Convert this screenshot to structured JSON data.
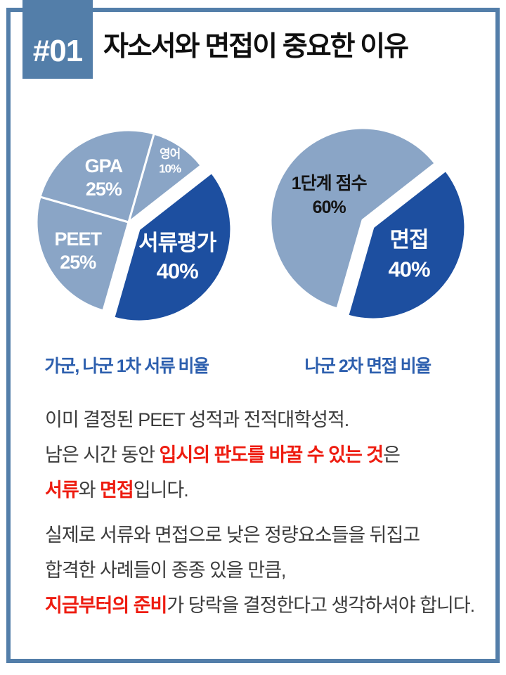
{
  "page": {
    "badge": "#01",
    "title": "자소서와 면접이 중요한 이유"
  },
  "colors": {
    "frame_blue": "#537ea9",
    "dark_slice_blue": "#1d4fa0",
    "light_slice_blue": "#8aa5c6",
    "caption_blue": "#2d5fae",
    "highlight_red": "#ee1c10",
    "body_text": "#3c3c3c"
  },
  "chart_data": [
    {
      "type": "pie",
      "title": "가군, 나군 1차 서류 비율",
      "unit": "%",
      "slices": [
        {
          "label": "영어",
          "value": 10,
          "value_label": "10%",
          "color": "#8aa5c6",
          "text_color": "#ffffff",
          "exploded": false
        },
        {
          "label": "서류평가",
          "value": 40,
          "value_label": "40%",
          "color": "#1d4fa0",
          "text_color": "#ffffff",
          "exploded": true
        },
        {
          "label": "PEET",
          "value": 25,
          "value_label": "25%",
          "color": "#8aa5c6",
          "text_color": "#ffffff",
          "exploded": false
        },
        {
          "label": "GPA",
          "value": 25,
          "value_label": "25%",
          "color": "#8aa5c6",
          "text_color": "#ffffff",
          "exploded": false
        }
      ]
    },
    {
      "type": "pie",
      "title": "나군 2차 면접 비율",
      "unit": "%",
      "slices": [
        {
          "label": "면접",
          "value": 40,
          "value_label": "40%",
          "color": "#1d4fa0",
          "text_color": "#ffffff",
          "exploded": true
        },
        {
          "label": "1단계 점수",
          "value": 60,
          "value_label": "60%",
          "color": "#8aa5c6",
          "text_color": "#141414",
          "exploded": false
        }
      ]
    }
  ],
  "paragraphs": [
    {
      "lines": [
        [
          {
            "t": "이미 결정된 PEET 성적과 전적대학성적."
          }
        ],
        [
          {
            "t": "남은 시간 동안 "
          },
          {
            "t": "입시의 판도를 바꿀 수 있는 것",
            "em": true
          },
          {
            "t": "은"
          }
        ],
        [
          {
            "t": "서류",
            "em": true
          },
          {
            "t": "와 "
          },
          {
            "t": "면접",
            "em": true
          },
          {
            "t": "입니다."
          }
        ]
      ]
    },
    {
      "lines": [
        [
          {
            "t": "실제로 서류와 면접으로 낮은 정량요소들을 뒤집고"
          }
        ],
        [
          {
            "t": "합격한 사례들이 종종 있을 만큼,"
          }
        ],
        [
          {
            "t": "지금부터의 준비",
            "em": true
          },
          {
            "t": "가 당락을 결정한다고 생각하셔야 합니다."
          }
        ]
      ]
    }
  ]
}
